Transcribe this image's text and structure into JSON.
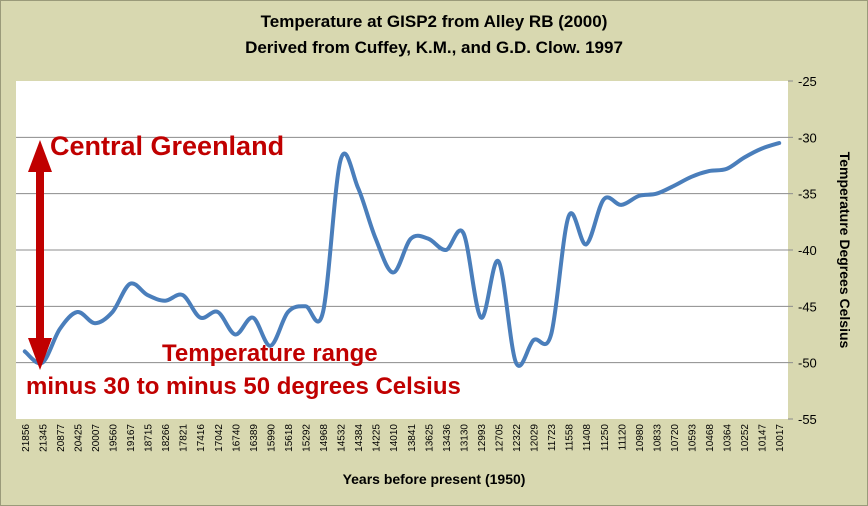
{
  "colors": {
    "background": "#d8d8b0",
    "plot_area": "#ffffff",
    "line": "#4a7ebb",
    "annotation": "#c00000"
  },
  "chart_data": {
    "type": "line",
    "title": "Temperature at GISP2 from Alley RB (2000)",
    "subtitle": "Derived from Cuffey, K.M., and G.D. Clow. 1997",
    "xlabel": "Years before present (1950)",
    "ylabel": "Temperature Degrees Celsius",
    "y_axis_position": "right",
    "ylim": [
      -55,
      -25
    ],
    "yticks": [
      -55,
      -50,
      -45,
      -40,
      -35,
      -30,
      -25
    ],
    "grid": "horizontal",
    "legend": "none",
    "categories": [
      "21856",
      "21345",
      "20877",
      "20425",
      "20007",
      "19560",
      "19167",
      "18715",
      "18266",
      "17821",
      "17416",
      "17042",
      "16740",
      "16389",
      "15990",
      "15618",
      "15292",
      "14968",
      "14532",
      "14384",
      "14225",
      "14010",
      "13841",
      "13625",
      "13436",
      "13130",
      "12993",
      "12705",
      "12322",
      "12029",
      "11723",
      "11558",
      "11408",
      "11250",
      "11120",
      "10980",
      "10833",
      "10720",
      "10593",
      "10468",
      "10364",
      "10252",
      "10147",
      "10017"
    ],
    "values": [
      -49,
      -50,
      -47,
      -45.5,
      -46.5,
      -45.5,
      -43,
      -44,
      -44.5,
      -44,
      -46,
      -45.5,
      -47.5,
      -46,
      -48.5,
      -45.5,
      -45,
      -45.5,
      -32,
      -34.5,
      -39,
      -42,
      -39,
      -39,
      -40,
      -38.5,
      -46,
      -41,
      -50,
      -48,
      -47.5,
      -37,
      -39.5,
      -35.5,
      -36,
      -35.2,
      -35,
      -34.3,
      -33.5,
      -33,
      -32.8,
      -31.8,
      -31,
      -30.5
    ],
    "annotations": [
      "Central Greenland",
      "Temperature range",
      "minus 30 to minus 50 degrees Celsius"
    ]
  }
}
